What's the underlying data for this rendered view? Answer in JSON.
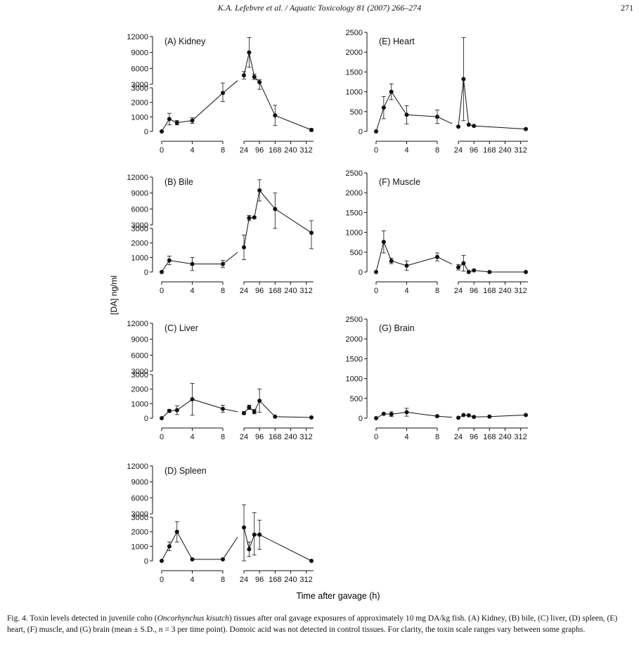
{
  "header": {
    "running_title": "K.A. Lefebvre et al. / Aquatic Toxicology 81 (2007) 266–274",
    "page_number": "271"
  },
  "figure": {
    "y_axis_label": "[DA] ng/ml",
    "x_axis_label": "Time after gavage (h)"
  },
  "caption": {
    "lead": "Fig. 4.  Toxin levels detected in juvenile coho (",
    "species": "Oncorhynchus kisutch",
    "body": ") tissues after oral gavage exposures of approximately 10 mg DA/kg fish. (A) Kidney, (B) bile, (C) liver, (D) spleen, (E) heart, (F) muscle, and (G) brain (mean ± S.D., ",
    "n_label": "n",
    "tail": " = 3 per time point). Domoic acid was not detected in control tissues. For clarity, the toxin scale ranges vary between some graphs."
  },
  "chart_data": [
    {
      "type": "line",
      "title": "(A) Kidney",
      "xlabel": "Time after gavage (h)",
      "ylabel": "[DA] ng/ml",
      "x_ticks_left": [
        "0",
        "4",
        "8"
      ],
      "x_ticks_right": [
        "24",
        "96",
        "168",
        "240",
        "312"
      ],
      "y_ticks_lower": [
        "0",
        "1000",
        "2000",
        "3000"
      ],
      "y_ticks_upper": [
        "3000",
        "6000",
        "9000",
        "12000"
      ],
      "ylim_lower": [
        0,
        3000
      ],
      "ylim_upper": [
        3000,
        12000
      ],
      "x": [
        0,
        1,
        2,
        4,
        8,
        24,
        48,
        72,
        96,
        168,
        336
      ],
      "y": [
        0,
        850,
        600,
        750,
        2650,
        4700,
        9000,
        4400,
        3400,
        1100,
        100
      ],
      "err": [
        0,
        400,
        150,
        200,
        600,
        700,
        2800,
        500,
        500,
        700,
        100
      ]
    },
    {
      "type": "line",
      "title": "(B) Bile",
      "xlabel": "Time after gavage (h)",
      "ylabel": "[DA] ng/ml",
      "x_ticks_left": [
        "0",
        "4",
        "8"
      ],
      "x_ticks_right": [
        "24",
        "96",
        "168",
        "240",
        "312"
      ],
      "y_ticks_lower": [
        "0",
        "1000",
        "2000",
        "3000"
      ],
      "y_ticks_upper": [
        "3000",
        "6000",
        "9000",
        "12000"
      ],
      "ylim_lower": [
        0,
        3000
      ],
      "ylim_upper": [
        3000,
        12000
      ],
      "x": [
        0,
        1,
        4,
        8,
        24,
        48,
        72,
        96,
        168,
        336
      ],
      "y": [
        0,
        800,
        550,
        550,
        1700,
        4300,
        4400,
        9500,
        6000,
        2700
      ],
      "err": [
        0,
        300,
        450,
        250,
        850,
        500,
        200,
        2000,
        3000,
        1100
      ]
    },
    {
      "type": "line",
      "title": "(C) Liver",
      "xlabel": "Time after gavage (h)",
      "ylabel": "[DA] ng/ml",
      "x_ticks_left": [
        "0",
        "4",
        "8"
      ],
      "x_ticks_right": [
        "24",
        "96",
        "168",
        "240",
        "312"
      ],
      "y_ticks_lower": [
        "0",
        "1000",
        "2000",
        "3000"
      ],
      "y_ticks_upper": [
        "3000",
        "6000",
        "9000",
        "12000"
      ],
      "ylim_lower": [
        0,
        3000
      ],
      "ylim_upper": [
        3000,
        12000
      ],
      "x": [
        0,
        1,
        2,
        4,
        8,
        24,
        48,
        72,
        96,
        168,
        336
      ],
      "y": [
        0,
        500,
        550,
        1300,
        650,
        350,
        750,
        450,
        1200,
        100,
        50
      ],
      "err": [
        0,
        100,
        300,
        1100,
        250,
        100,
        150,
        150,
        800,
        0,
        0
      ]
    },
    {
      "type": "line",
      "title": "(D) Spleen",
      "xlabel": "Time after gavage (h)",
      "ylabel": "[DA] ng/ml",
      "x_ticks_left": [
        "0",
        "4",
        "8"
      ],
      "x_ticks_right": [
        "24",
        "96",
        "168",
        "240",
        "312"
      ],
      "y_ticks_lower": [
        "0",
        "1000",
        "2000",
        "3000"
      ],
      "y_ticks_upper": [
        "3000",
        "6000",
        "9000",
        "12000"
      ],
      "ylim_lower": [
        0,
        3000
      ],
      "ylim_upper": [
        3000,
        12000
      ],
      "x": [
        0,
        1,
        2,
        4,
        8,
        24,
        48,
        72,
        96,
        336
      ],
      "y": [
        0,
        1000,
        2000,
        100,
        100,
        2300,
        800,
        1800,
        1800,
        0
      ],
      "err": [
        0,
        300,
        700,
        0,
        0,
        2400,
        500,
        1400,
        1000,
        0
      ]
    },
    {
      "type": "line",
      "title": "(E) Heart",
      "xlabel": "Time after gavage (h)",
      "ylabel": "[DA] ng/ml",
      "x_ticks_left": [
        "0",
        "4",
        "8"
      ],
      "x_ticks_right": [
        "24",
        "96",
        "168",
        "240",
        "312"
      ],
      "y_ticks": [
        "0",
        "500",
        "1000",
        "1500",
        "2000",
        "2500"
      ],
      "ylim": [
        0,
        2500
      ],
      "x": [
        0,
        1,
        2,
        4,
        8,
        24,
        48,
        72,
        96,
        336
      ],
      "y": [
        0,
        600,
        1000,
        420,
        370,
        120,
        1320,
        170,
        140,
        60
      ],
      "err": [
        0,
        280,
        200,
        230,
        170,
        0,
        1050,
        0,
        0,
        0
      ]
    },
    {
      "type": "line",
      "title": "(F) Muscle",
      "xlabel": "Time after gavage (h)",
      "ylabel": "[DA] ng/ml",
      "x_ticks_left": [
        "0",
        "4",
        "8"
      ],
      "x_ticks_right": [
        "24",
        "96",
        "168",
        "240",
        "312"
      ],
      "y_ticks": [
        "0",
        "500",
        "1000",
        "1500",
        "2000",
        "2500"
      ],
      "ylim": [
        0,
        2500
      ],
      "x": [
        0,
        1,
        2,
        4,
        8,
        24,
        48,
        72,
        96,
        168,
        336
      ],
      "y": [
        0,
        760,
        280,
        160,
        380,
        120,
        220,
        0,
        40,
        0,
        0
      ],
      "err": [
        0,
        280,
        70,
        120,
        100,
        70,
        200,
        0,
        0,
        0,
        0
      ]
    },
    {
      "type": "line",
      "title": "(G) Brain",
      "xlabel": "Time after gavage (h)",
      "ylabel": "[DA] ng/ml",
      "x_ticks_left": [
        "0",
        "4",
        "8"
      ],
      "x_ticks_right": [
        "24",
        "96",
        "168",
        "240",
        "312"
      ],
      "y_ticks": [
        "0",
        "500",
        "1000",
        "1500",
        "2000",
        "2500"
      ],
      "ylim": [
        0,
        2500
      ],
      "x": [
        0,
        1,
        2,
        4,
        8,
        24,
        48,
        72,
        96,
        168,
        336
      ],
      "y": [
        0,
        110,
        100,
        150,
        50,
        10,
        80,
        70,
        30,
        40,
        80
      ],
      "err": [
        0,
        0,
        60,
        100,
        0,
        0,
        0,
        0,
        0,
        0,
        0
      ]
    }
  ]
}
